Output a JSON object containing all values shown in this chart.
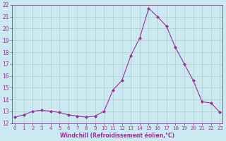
{
  "x": [
    0,
    1,
    2,
    3,
    4,
    5,
    6,
    7,
    8,
    9,
    10,
    11,
    12,
    13,
    14,
    15,
    16,
    17,
    18,
    19,
    20,
    21,
    22,
    23
  ],
  "y": [
    12.5,
    12.7,
    13.0,
    13.1,
    13.0,
    12.9,
    12.7,
    12.6,
    12.5,
    12.6,
    13.0,
    14.8,
    15.6,
    17.7,
    19.2,
    21.7,
    21.0,
    20.2,
    18.4,
    17.0,
    15.6,
    13.8,
    13.7,
    12.9
  ],
  "line_color": "#993399",
  "marker_color": "#993399",
  "bg_color": "#cce8f0",
  "grid_color": "#aacccc",
  "xlabel": "Windchill (Refroidissement éolien,°C)",
  "xlabel_color": "#993399",
  "tick_color": "#993399",
  "ylim_min": 12,
  "ylim_max": 22,
  "xlim_min": 0,
  "xlim_max": 23
}
